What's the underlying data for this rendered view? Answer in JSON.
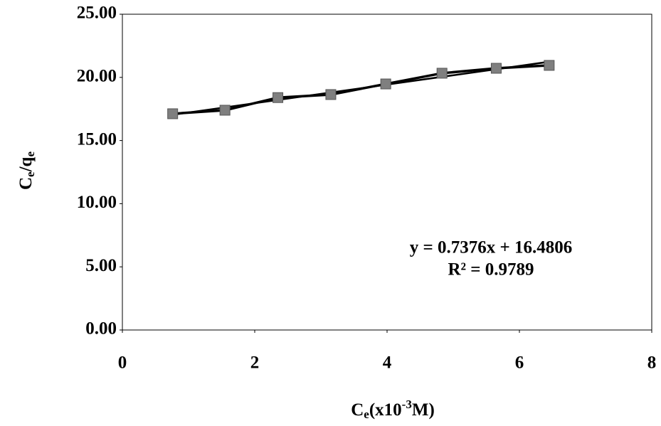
{
  "chart_data": {
    "type": "scatter",
    "x_label": [
      "C",
      "e",
      "(x10",
      "-3",
      "M)"
    ],
    "y_label": [
      "C",
      "e",
      "/q",
      "e"
    ],
    "x": [
      0.76,
      1.55,
      2.35,
      3.15,
      3.98,
      4.83,
      5.65,
      6.45
    ],
    "series": [
      {
        "color": "#7f7f7f",
        "values": [
          17.12,
          17.4,
          18.4,
          18.64,
          19.48,
          20.33,
          20.72,
          20.95
        ]
      }
    ],
    "trendline": {
      "slope": 0.7376,
      "intercept": 16.4806,
      "equation": "y = 0.7376x + 16.4806",
      "r2_label": "R² = 0.9789"
    },
    "xlim": [
      0,
      8
    ],
    "ylim": [
      0,
      25
    ],
    "xticks": [
      0,
      2,
      4,
      6,
      8
    ],
    "yticks": [
      {
        "value": 0,
        "label": "0.00"
      },
      {
        "value": 5,
        "label": "5.00"
      },
      {
        "value": 10,
        "label": "10.00"
      },
      {
        "value": 15,
        "label": "15.00"
      },
      {
        "value": 20,
        "label": "20.00"
      },
      {
        "value": 25,
        "label": "25.00"
      }
    ],
    "grid": false
  }
}
